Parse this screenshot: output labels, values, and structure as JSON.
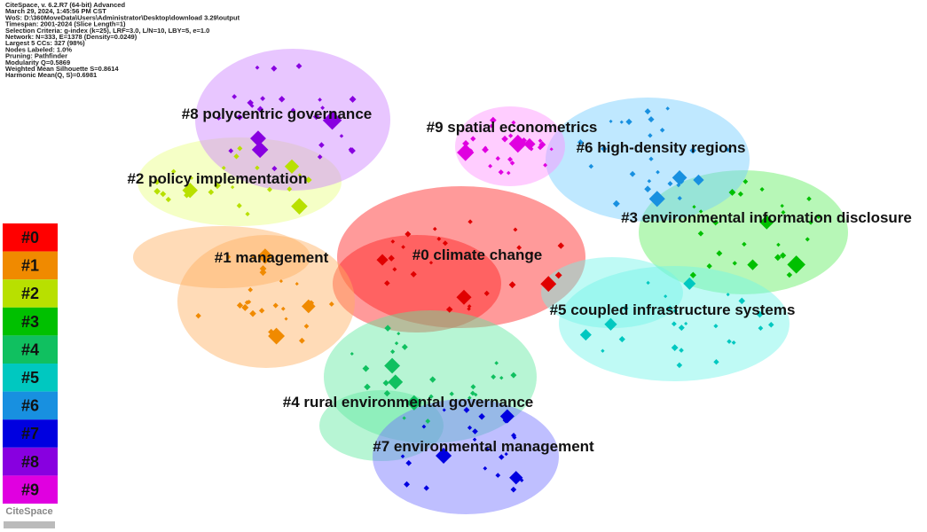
{
  "header": {
    "lines": [
      "CiteSpace, v. 6.2.R7 (64-bit) Advanced",
      "March 29, 2024, 1:45:56 PM CST",
      "WoS: D:\\360MoveData\\Users\\Administrator\\Desktop\\download 3.29\\output",
      "Timespan: 2001-2024 (Slice Length=1)",
      "Selection Criteria: g-index (k=25), LRF=3.0, L/N=10, LBY=5, e=1.0",
      "Network: N=333, E=1378 (Density=0.0249)",
      "Largest 5 CCs: 327 (98%)",
      "Nodes Labeled: 1.0%",
      "Pruning: Pathfinder",
      "Modularity Q=0.5869",
      "Weighted Mean Silhouette S=0.8614",
      "Harmonic Mean(Q, S)=0.6981"
    ]
  },
  "clusters": [
    {
      "label": "#0 climate change"
    },
    {
      "label": "#1 management"
    },
    {
      "label": "#2 policy implementation"
    },
    {
      "label": "#3 environmental information disclosure"
    },
    {
      "label": "#4 rural environmental governance"
    },
    {
      "label": "#5 coupled infrastructure systems"
    },
    {
      "label": "#6 high-density regions"
    },
    {
      "label": "#7 environmental management"
    },
    {
      "label": "#8 polycentric governance"
    },
    {
      "label": "#9 spatial econometrics"
    }
  ],
  "legend": {
    "items": [
      "#0",
      "#1",
      "#2",
      "#3",
      "#4",
      "#5",
      "#6",
      "#7",
      "#8",
      "#9"
    ]
  },
  "logo": "CiteSpace"
}
